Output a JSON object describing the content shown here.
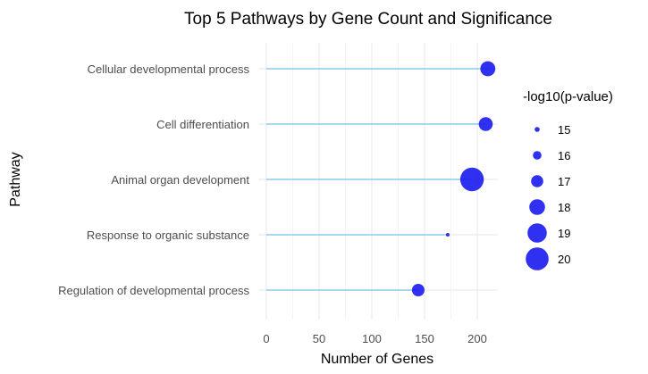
{
  "chart_data": {
    "type": "scatter",
    "subtype": "lollipop",
    "title": "Top 5 Pathways by Gene Count and Significance",
    "xlabel": "Number of Genes",
    "ylabel": "Pathway",
    "xlim": [
      0,
      220
    ],
    "x_ticks": [
      0,
      50,
      100,
      150,
      200
    ],
    "grid": true,
    "legend_position": "right",
    "colors": {
      "point": "#1a1aee",
      "stem": "#87ceeb",
      "grid": "#ebebeb"
    },
    "categories": [
      "Cellular developmental process",
      "Cell differentiation",
      "Animal organ development",
      "Response to organic substance",
      "Regulation of developmental process"
    ],
    "values": [
      210,
      208,
      195,
      172,
      144
    ],
    "sizes": [
      17.8,
      17.5,
      20.2,
      14.6,
      17.1
    ],
    "legend": {
      "title": "-log10(p-value)",
      "levels": [
        15,
        16,
        17,
        18,
        19,
        20
      ]
    }
  }
}
